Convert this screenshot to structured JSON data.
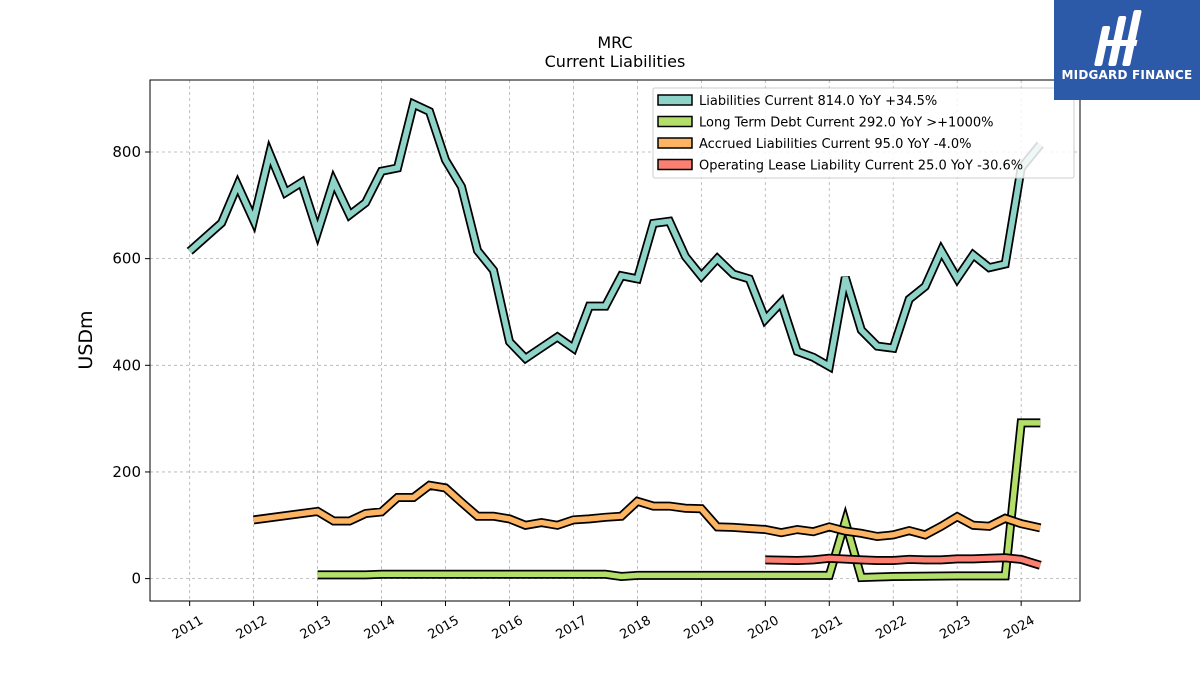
{
  "chart_data": {
    "type": "line",
    "title": "MRC",
    "subtitle": "Current  Liabilities",
    "ylabel": "USDm",
    "xlabel": "",
    "ylim": [
      -42,
      935
    ],
    "xlim": [
      2010.38,
      2024.92
    ],
    "yticks": [
      0,
      200,
      400,
      600,
      800
    ],
    "xticks": [
      2011,
      2012,
      2013,
      2014,
      2015,
      2016,
      2017,
      2018,
      2019,
      2020,
      2021,
      2022,
      2023,
      2024
    ],
    "xtick_labels": [
      "2011",
      "2012",
      "2013",
      "2014",
      "2015",
      "2016",
      "2017",
      "2018",
      "2019",
      "2020",
      "2021",
      "2022",
      "2023",
      "2024"
    ],
    "grid": true,
    "legend_position": "top-right",
    "series": [
      {
        "name": "Liabilities Current  814.0 YoY +34.5%",
        "color": "#8dd3c7",
        "x": [
          2011.0,
          2011.5,
          2011.75,
          2012.0,
          2012.25,
          2012.5,
          2012.75,
          2013.0,
          2013.25,
          2013.5,
          2013.75,
          2014.0,
          2014.25,
          2014.5,
          2014.75,
          2015.0,
          2015.25,
          2015.5,
          2015.75,
          2016.0,
          2016.25,
          2016.5,
          2016.75,
          2017.0,
          2017.25,
          2017.5,
          2017.75,
          2018.0,
          2018.25,
          2018.5,
          2018.75,
          2019.0,
          2019.25,
          2019.5,
          2019.75,
          2020.0,
          2020.25,
          2020.5,
          2020.75,
          2021.0,
          2021.25,
          2021.5,
          2021.75,
          2022.0,
          2022.25,
          2022.5,
          2022.75,
          2023.0,
          2023.25,
          2023.5,
          2023.75,
          2024.0,
          2024.3
        ],
        "values": [
          614,
          667,
          738,
          672,
          797,
          724,
          743,
          650,
          745,
          682,
          705,
          764,
          770,
          890,
          876,
          785,
          735,
          615,
          578,
          444,
          413,
          433,
          453,
          432,
          511,
          511,
          568,
          562,
          666,
          670,
          604,
          567,
          600,
          571,
          562,
          486,
          518,
          426,
          415,
          398,
          565,
          466,
          436,
          432,
          524,
          548,
          615,
          563,
          607,
          583,
          590,
          770,
          814
        ]
      },
      {
        "name": "Long Term Debt Current  292.0 YoY >+1000%",
        "color": "#b3de69",
        "x": [
          2013.0,
          2013.75,
          2014.0,
          2015.0,
          2016.0,
          2017.0,
          2017.5,
          2017.75,
          2018.0,
          2019.0,
          2020.0,
          2021.0,
          2021.25,
          2021.5,
          2021.75,
          2022.0,
          2023.0,
          2023.75,
          2024.0,
          2024.3
        ],
        "values": [
          7,
          7,
          8,
          8,
          8,
          8,
          8,
          4,
          6,
          6,
          6,
          6,
          107,
          2,
          3,
          4,
          5,
          5,
          292,
          292
        ]
      },
      {
        "name": "Accrued Liabilities Current  95.0 YoY -4.0%",
        "color": "#fdb462",
        "x": [
          2012.0,
          2013.0,
          2013.25,
          2013.5,
          2013.75,
          2014.0,
          2014.25,
          2014.5,
          2014.75,
          2015.0,
          2015.25,
          2015.5,
          2015.75,
          2016.0,
          2016.25,
          2016.5,
          2016.75,
          2017.0,
          2017.25,
          2017.5,
          2017.75,
          2018.0,
          2018.25,
          2018.5,
          2018.75,
          2019.0,
          2019.25,
          2019.5,
          2019.75,
          2020.0,
          2020.25,
          2020.5,
          2020.75,
          2021.0,
          2021.25,
          2021.5,
          2021.75,
          2022.0,
          2022.25,
          2022.5,
          2022.75,
          2023.0,
          2023.25,
          2023.5,
          2023.75,
          2024.0,
          2024.3
        ],
        "values": [
          110,
          126,
          108,
          108,
          122,
          125,
          152,
          152,
          175,
          170,
          143,
          117,
          117,
          112,
          100,
          105,
          100,
          110,
          112,
          115,
          117,
          145,
          136,
          136,
          132,
          131,
          97,
          96,
          94,
          92,
          86,
          92,
          88,
          97,
          89,
          85,
          79,
          82,
          90,
          82,
          98,
          116,
          100,
          98,
          113,
          103,
          95
        ]
      },
      {
        "name": "Operating Lease Liability Current  25.0 YoY -30.6%",
        "color": "#fb8072",
        "x": [
          2020.0,
          2020.5,
          2020.75,
          2021.0,
          2021.5,
          2021.75,
          2022.0,
          2022.25,
          2022.5,
          2022.75,
          2023.0,
          2023.25,
          2023.5,
          2023.75,
          2024.0,
          2024.3
        ],
        "values": [
          35,
          34,
          35,
          38,
          35,
          34,
          34,
          36,
          35,
          35,
          37,
          37,
          38,
          39,
          36,
          25
        ]
      }
    ]
  },
  "logo": {
    "text": "MIDGARD FINANCE",
    "color": "#2d5aa8"
  }
}
